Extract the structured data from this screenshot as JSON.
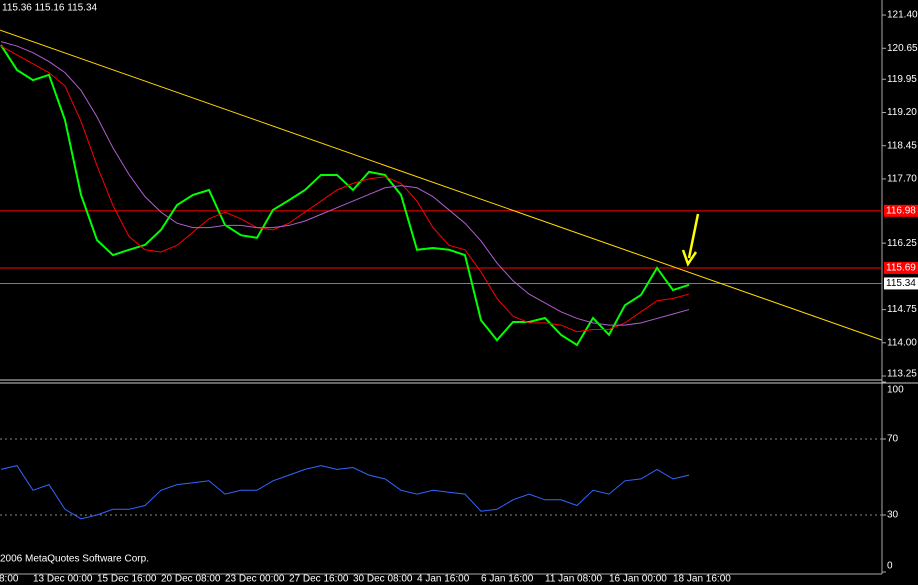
{
  "header": "115.36 115.16 115.34",
  "copyright": "2006 MetaQuotes Software Corp.",
  "chart_data": [
    {
      "type": "line",
      "categories": [
        "8:00",
        null,
        "13 Dec 00:00",
        null,
        null,
        null,
        "15 Dec 16:00",
        null,
        null,
        null,
        "20 Dec 08:00",
        null,
        null,
        null,
        "23 Dec 00:00",
        null,
        null,
        null,
        "27 Dec 16:00",
        null,
        null,
        null,
        "30 Dec 08:00",
        null,
        null,
        null,
        "4 Jan 16:00",
        null,
        null,
        null,
        "6 Jan 16:00",
        null,
        null,
        null,
        "11 Jan 08:00",
        null,
        null,
        null,
        "16 Jan 00:00",
        null,
        null,
        null,
        "18 Jan 16:00",
        null,
        null,
        null,
        null,
        null,
        null,
        null,
        null,
        null,
        null,
        null,
        null
      ],
      "ylim": [
        113.16,
        121.74
      ],
      "yticks": [
        {
          "value": 121.4,
          "label": "121.40"
        },
        120.65,
        119.95,
        {
          "value": 119.2,
          "label": "119.20"
        },
        118.45,
        {
          "value": 117.7,
          "label": "117.70"
        },
        116.25,
        114.75,
        {
          "value": 114.0,
          "label": "114.00"
        },
        113.25
      ],
      "series": [
        {
          "color": "#00ff00",
          "values": [
            120.72,
            120.16,
            119.93,
            120.05,
            119.03,
            117.34,
            116.32,
            115.98,
            116.1,
            116.21,
            116.55,
            117.11,
            117.34,
            117.45,
            116.66,
            116.43,
            116.37,
            117.0,
            117.22,
            117.45,
            117.79,
            117.79,
            117.45,
            117.86,
            117.79,
            117.34,
            116.1,
            116.14,
            116.1,
            115.98,
            114.51,
            114.06,
            114.47,
            114.47,
            114.56,
            114.18,
            113.95,
            114.56,
            114.18,
            114.85,
            115.08,
            115.69,
            115.19,
            115.31,
            null,
            null,
            null,
            null,
            null,
            null,
            null,
            null,
            null,
            null,
            null
          ]
        },
        {
          "color": "#ff0000",
          "values": [
            120.7,
            120.5,
            120.3,
            120.1,
            119.8,
            119.0,
            118.0,
            117.1,
            116.4,
            116.1,
            116.05,
            116.2,
            116.5,
            116.8,
            116.95,
            116.8,
            116.6,
            116.55,
            116.7,
            116.95,
            117.2,
            117.45,
            117.6,
            117.7,
            117.75,
            117.6,
            117.2,
            116.6,
            116.2,
            116.1,
            115.6,
            115.0,
            114.6,
            114.45,
            114.45,
            114.4,
            114.25,
            114.3,
            114.3,
            114.45,
            114.7,
            114.95,
            115.0,
            115.1,
            null,
            null,
            null,
            null,
            null,
            null,
            null,
            null,
            null,
            null,
            null
          ]
        },
        {
          "color": "#b05fd0",
          "values": [
            120.8,
            120.7,
            120.55,
            120.35,
            120.1,
            119.7,
            119.1,
            118.4,
            117.8,
            117.3,
            116.95,
            116.7,
            116.6,
            116.6,
            116.65,
            116.65,
            116.6,
            116.6,
            116.65,
            116.75,
            116.9,
            117.05,
            117.2,
            117.35,
            117.5,
            117.55,
            117.5,
            117.3,
            117.0,
            116.7,
            116.3,
            115.8,
            115.4,
            115.1,
            114.9,
            114.7,
            114.55,
            114.45,
            114.4,
            114.4,
            114.45,
            114.55,
            114.65,
            114.75,
            null,
            null,
            null,
            null,
            null,
            null,
            null,
            null,
            null,
            null,
            null
          ]
        }
      ],
      "hlines": [
        {
          "value": 116.98,
          "color": "#ff0000"
        },
        {
          "value": 115.69,
          "color": "#ff0000"
        },
        {
          "value": 115.34,
          "color": "#6a7fa8"
        }
      ],
      "trendline": {
        "color": "#ffd700",
        "values": [
          121.06,
          114.06
        ]
      }
    },
    {
      "type": "line",
      "ylim": [
        0,
        100
      ],
      "yticks": [
        0,
        30,
        70,
        100
      ],
      "levels": [
        30,
        70
      ],
      "series": [
        {
          "color": "#3366ff",
          "values": [
            54,
            56,
            43,
            46,
            33,
            28,
            30,
            33,
            33,
            35,
            43,
            46,
            47,
            48,
            41,
            43,
            43,
            48,
            51,
            54,
            56,
            54,
            55,
            51,
            49,
            43,
            41,
            43,
            42,
            41,
            32,
            33,
            38,
            41,
            38,
            38,
            35,
            43,
            41,
            48,
            49,
            54,
            49,
            51,
            null,
            null,
            null,
            null,
            null,
            null,
            null,
            null,
            null,
            null,
            null
          ]
        }
      ]
    }
  ]
}
